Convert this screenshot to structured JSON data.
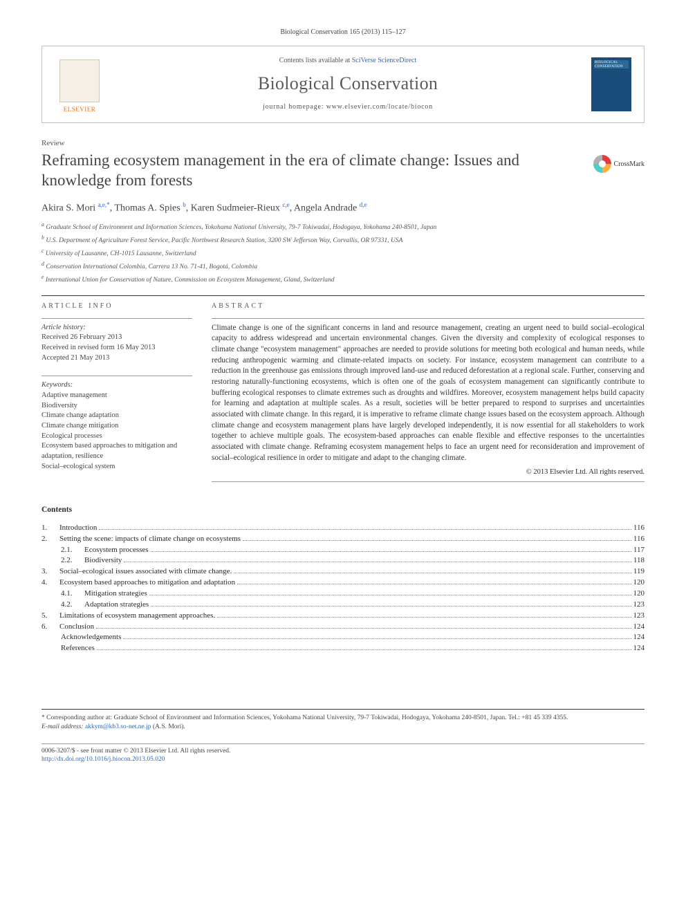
{
  "citation": "Biological Conservation 165 (2013) 115–127",
  "header": {
    "contents_prefix": "Contents lists available at ",
    "contents_link": "SciVerse ScienceDirect",
    "journal": "Biological Conservation",
    "homepage_prefix": "journal homepage: ",
    "homepage_url": "www.elsevier.com/locate/biocon",
    "elsevier_label": "ELSEVIER",
    "cover_label": "BIOLOGICAL CONSERVATION"
  },
  "article_type": "Review",
  "title": "Reframing ecosystem management in the era of climate change: Issues and knowledge from forests",
  "crossmark_label": "CrossMark",
  "authors_html": "Akira S. Mori <sup>a,e,*</sup>, Thomas A. Spies <sup>b</sup>, Karen Sudmeier-Rieux <sup>c,e</sup>, Angela Andrade <sup>d,e</sup>",
  "affiliations": [
    "a Graduate School of Environment and Information Sciences, Yokohama National University, 79-7 Tokiwadai, Hodogaya, Yokohama 240-8501, Japan",
    "b U.S. Department of Agriculture Forest Service, Pacific Northwest Research Station, 3200 SW Jefferson Way, Corvallis, OR 97331, USA",
    "c University of Lausanne, CH-1015 Lausanne, Switzerland",
    "d Conservation International Colombia, Carrera 13 No. 71-41, Bogotá, Colombia",
    "e International Union for Conservation of Nature, Commission on Ecosystem Management, Gland, Switzerland"
  ],
  "info": {
    "head": "ARTICLE INFO",
    "history_label": "Article history:",
    "history": [
      "Received 26 February 2013",
      "Received in revised form 16 May 2013",
      "Accepted 21 May 2013"
    ],
    "keywords_label": "Keywords:",
    "keywords": [
      "Adaptive management",
      "Biodiversity",
      "Climate change adaptation",
      "Climate change mitigation",
      "Ecological processes",
      "Ecosystem based approaches to mitigation and adaptation, resilience",
      "Social–ecological system"
    ]
  },
  "abstract": {
    "head": "ABSTRACT",
    "text": "Climate change is one of the significant concerns in land and resource management, creating an urgent need to build social–ecological capacity to address widespread and uncertain environmental changes. Given the diversity and complexity of ecological responses to climate change \"ecosystem management\" approaches are needed to provide solutions for meeting both ecological and human needs, while reducing anthropogenic warming and climate-related impacts on society. For instance, ecosystem management can contribute to a reduction in the greenhouse gas emissions through improved land-use and reduced deforestation at a regional scale. Further, conserving and restoring naturally-functioning ecosystems, which is often one of the goals of ecosystem management can significantly contribute to buffering ecological responses to climate extremes such as droughts and wildfires. Moreover, ecosystem management helps build capacity for learning and adaptation at multiple scales. As a result, societies will be better prepared to respond to surprises and uncertainties associated with climate change. In this regard, it is imperative to reframe climate change issues based on the ecosystem approach. Although climate change and ecosystem management plans have largely developed independently, it is now essential for all stakeholders to work together to achieve multiple goals. The ecosystem-based approaches can enable flexible and effective responses to the uncertainties associated with climate change. Reframing ecosystem management helps to face an urgent need for reconsideration and improvement of social–ecological resilience in order to mitigate and adapt to the changing climate.",
    "copyright": "© 2013 Elsevier Ltd. All rights reserved."
  },
  "contents_head": "Contents",
  "toc": [
    {
      "n": "1.",
      "t": "Introduction",
      "p": "116",
      "lvl": 0
    },
    {
      "n": "2.",
      "t": "Setting the scene: impacts of climate change on ecosystems",
      "p": "116",
      "lvl": 0
    },
    {
      "n": "2.1.",
      "t": "Ecosystem processes",
      "p": "117",
      "lvl": 1
    },
    {
      "n": "2.2.",
      "t": "Biodiversity",
      "p": "118",
      "lvl": 1
    },
    {
      "n": "3.",
      "t": "Social–ecological issues associated with climate change.",
      "p": "119",
      "lvl": 0
    },
    {
      "n": "4.",
      "t": "Ecosystem based approaches to mitigation and adaptation",
      "p": "120",
      "lvl": 0
    },
    {
      "n": "4.1.",
      "t": "Mitigation strategies",
      "p": "120",
      "lvl": 1
    },
    {
      "n": "4.2.",
      "t": "Adaptation strategies",
      "p": "123",
      "lvl": 1
    },
    {
      "n": "5.",
      "t": "Limitations of ecosystem management approaches.",
      "p": "123",
      "lvl": 0
    },
    {
      "n": "6.",
      "t": "Conclusion",
      "p": "124",
      "lvl": 0
    },
    {
      "n": "",
      "t": "Acknowledgements",
      "p": "124",
      "lvl": 2
    },
    {
      "n": "",
      "t": "References",
      "p": "124",
      "lvl": 2
    }
  ],
  "footnote": {
    "corr": "* Corresponding author at: Graduate School of Environment and Information Sciences, Yokohama National University, 79-7 Tokiwadai, Hodogaya, Yokohama 240-8501, Japan. Tel.: +81 45 339 4355.",
    "email_label": "E-mail address: ",
    "email": "akkym@kb3.so-net.ne.jp",
    "email_suffix": " (A.S. Mori)."
  },
  "bottom": {
    "line1": "0006-3207/$ - see front matter © 2013 Elsevier Ltd. All rights reserved.",
    "doi": "http://dx.doi.org/10.1016/j.biocon.2013.05.020"
  },
  "colors": {
    "link": "#2a6ab8",
    "elsevier_orange": "#ff6a00",
    "text": "#2a2a2a",
    "cover_bg": "#1a4d7a"
  }
}
